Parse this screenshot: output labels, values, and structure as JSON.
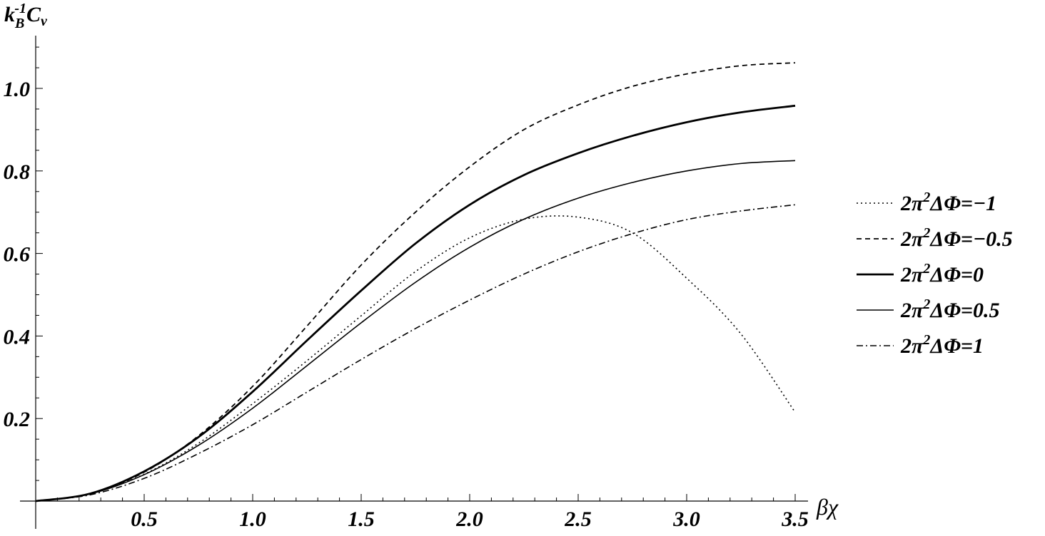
{
  "chart_data": {
    "type": "line",
    "ylabel": "k_B^-1 C_v",
    "ylabel_parts": {
      "k": "k",
      "sub": "B",
      "sup": "-1",
      "C": "C",
      "csub": "v"
    },
    "xlabel": "βχ",
    "xlim": [
      0,
      3.5
    ],
    "ylim": [
      0,
      1.1
    ],
    "x_ticks": [
      0.5,
      1.0,
      1.5,
      2.0,
      2.5,
      3.0,
      3.5
    ],
    "x_tick_labels": [
      "0.5",
      "1.0",
      "1.5",
      "2.0",
      "2.5",
      "3.0",
      "3.5"
    ],
    "y_ticks": [
      0.2,
      0.4,
      0.6,
      0.8,
      1.0
    ],
    "y_tick_labels": [
      "0.2",
      "0.4",
      "0.6",
      "0.8",
      "1.0"
    ],
    "grid": false,
    "legend_position": "right",
    "x": [
      0,
      0.25,
      0.5,
      0.75,
      1.0,
      1.25,
      1.5,
      1.75,
      2.0,
      2.25,
      2.5,
      2.75,
      3.0,
      3.25,
      3.5
    ],
    "series": [
      {
        "name": "2π²ΔΦ=−1",
        "legend": {
          "prefix": "2π",
          "sup": "2",
          "text": "ΔΦ=−1"
        },
        "style": "dotted",
        "width": 1.6,
        "values": [
          0,
          0.018,
          0.065,
          0.14,
          0.236,
          0.34,
          0.449,
          0.556,
          0.638,
          0.683,
          0.688,
          0.65,
          0.54,
          0.405,
          0.215
        ]
      },
      {
        "name": "2π²ΔΦ=−0.5",
        "legend": {
          "prefix": "2π",
          "sup": "2",
          "text": "ΔΦ=−0.5"
        },
        "style": "dashed",
        "width": 1.8,
        "values": [
          0,
          0.018,
          0.07,
          0.158,
          0.278,
          0.424,
          0.572,
          0.7,
          0.81,
          0.9,
          0.96,
          1.005,
          1.035,
          1.055,
          1.062
        ]
      },
      {
        "name": "2π²ΔΦ=0",
        "legend": {
          "prefix": "2π",
          "sup": "2",
          "text": "ΔΦ=0"
        },
        "style": "solid-thick",
        "width": 2.8,
        "values": [
          0,
          0.018,
          0.072,
          0.155,
          0.265,
          0.389,
          0.51,
          0.624,
          0.718,
          0.79,
          0.843,
          0.885,
          0.918,
          0.942,
          0.958
        ]
      },
      {
        "name": "2π²ΔΦ=0.5",
        "legend": {
          "prefix": "2π",
          "sup": "2",
          "text": "ΔΦ=0.5"
        },
        "style": "solid-thin",
        "width": 1.6,
        "values": [
          0,
          0.017,
          0.064,
          0.135,
          0.225,
          0.328,
          0.432,
          0.53,
          0.615,
          0.683,
          0.734,
          0.772,
          0.8,
          0.818,
          0.825
        ]
      },
      {
        "name": "2π²ΔΦ=1",
        "legend": {
          "prefix": "2π",
          "sup": "2",
          "text": "ΔΦ=1"
        },
        "style": "dashdot",
        "width": 1.6,
        "values": [
          0,
          0.015,
          0.055,
          0.115,
          0.185,
          0.264,
          0.343,
          0.418,
          0.487,
          0.55,
          0.604,
          0.648,
          0.682,
          0.703,
          0.718
        ]
      }
    ]
  }
}
